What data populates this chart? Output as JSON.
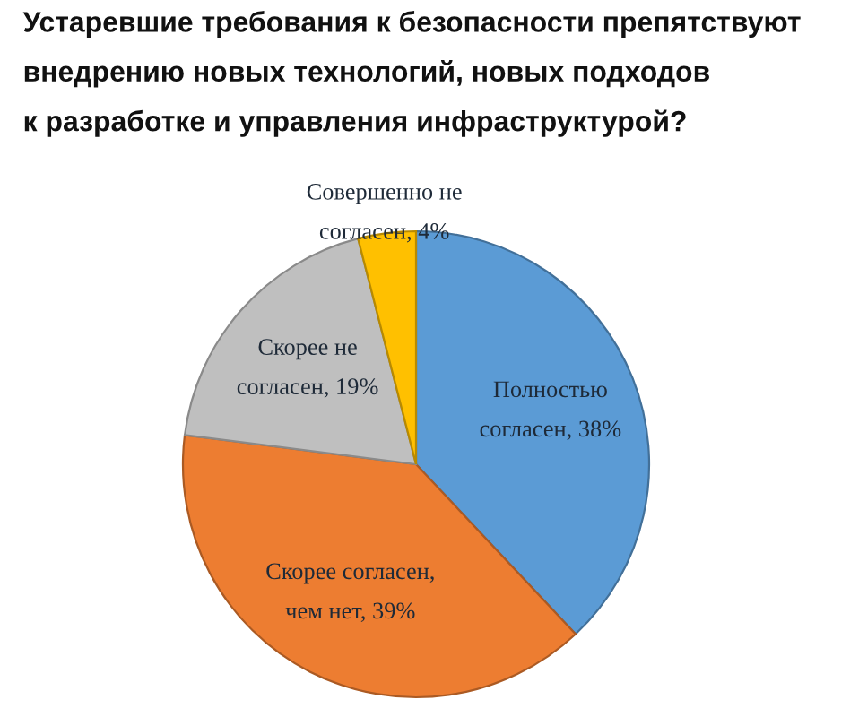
{
  "chart_data": {
    "type": "pie",
    "title": "Устаревшие требования к безопасности препятствуют\nвнедрению новых технологий, новых подходов\nк разработке и управления инфраструктурой?",
    "categories": [
      "Полностью\nсогласен",
      "Скорее согласен,\nчем нет",
      "Скорее не\nсогласен",
      "Совершенно не\nсогласен"
    ],
    "values": [
      38,
      39,
      19,
      4
    ],
    "colors": [
      "#5b9bd5",
      "#ed7d31",
      "#bfbfbf",
      "#ffc000"
    ],
    "value_labels": [
      "38%",
      "39%",
      "19%",
      "4%"
    ]
  }
}
